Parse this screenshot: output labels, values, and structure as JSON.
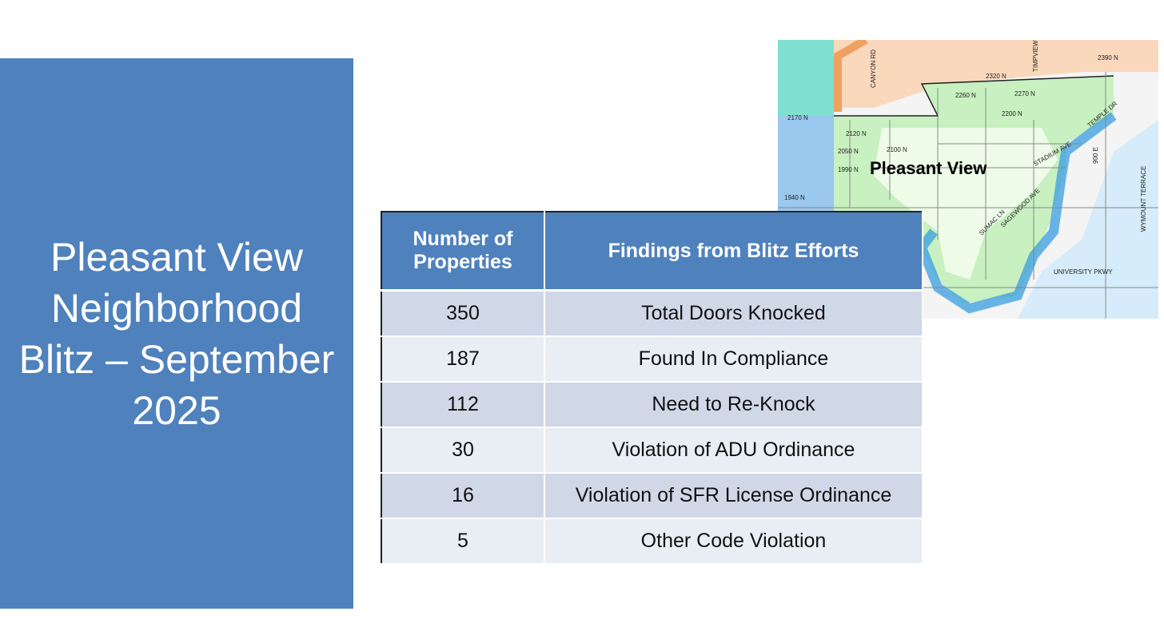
{
  "title": "Pleasant View Neighborhood Blitz – September 2025",
  "table": {
    "header": [
      "Number of Properties",
      "Findings from Blitz Efforts"
    ],
    "rows": [
      [
        350,
        "Total Doors Knocked"
      ],
      [
        187,
        "Found In Compliance"
      ],
      [
        112,
        "Need to Re-Knock"
      ],
      [
        30,
        "Violation of ADU Ordinance"
      ],
      [
        16,
        "Violation of SFR License Ordinance"
      ],
      [
        5,
        "Other Code Violation"
      ]
    ]
  },
  "map": {
    "label": "Pleasant View",
    "streets": [
      "CANYON RD",
      "2320 N",
      "2270 N",
      "2260 N",
      "2200 N",
      "2170 N",
      "2120 N",
      "2100 N",
      "2050 N",
      "1990 N",
      "1940 N",
      "STADIUM AVE",
      "SUMAC LN",
      "SAGEWOOD AVE",
      "UNIVERSITY PKWY",
      "TEMPLE DR",
      "900 E",
      "WYMOUNT TERRACE",
      "2390 N",
      "TIMPVIEW"
    ]
  }
}
